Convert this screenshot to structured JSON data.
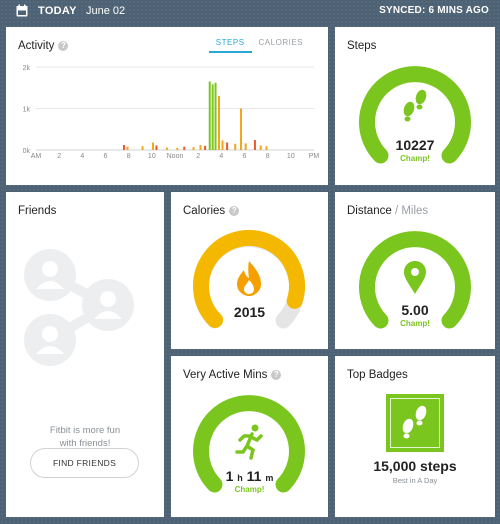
{
  "header": {
    "today_label": "TODAY",
    "date": "June 02",
    "synced": "SYNCED: 6 MINS AGO"
  },
  "activity": {
    "title": "Activity",
    "tabs": [
      {
        "label": "STEPS",
        "active": true
      },
      {
        "label": "CALORIES",
        "active": false
      }
    ]
  },
  "chart_data": {
    "type": "bar",
    "title": "Activity",
    "y_ticks": [
      "0k",
      "1k",
      "2k"
    ],
    "ylim": [
      0,
      2000
    ],
    "x_ticks": [
      "AM",
      "2",
      "4",
      "6",
      "8",
      "10",
      "Noon",
      "2",
      "4",
      "6",
      "8",
      "10",
      "PM"
    ],
    "xlim": [
      0,
      24
    ],
    "grid": true,
    "bars": [
      {
        "x": 7.6,
        "value": 120,
        "color": "#e8582a"
      },
      {
        "x": 7.9,
        "value": 80,
        "color": "#f2a61c"
      },
      {
        "x": 9.2,
        "value": 90,
        "color": "#f2a61c"
      },
      {
        "x": 10.1,
        "value": 180,
        "color": "#f2a61c"
      },
      {
        "x": 10.4,
        "value": 110,
        "color": "#e8582a"
      },
      {
        "x": 11.3,
        "value": 60,
        "color": "#f2a61c"
      },
      {
        "x": 12.2,
        "value": 50,
        "color": "#f2a61c"
      },
      {
        "x": 12.8,
        "value": 80,
        "color": "#e8582a"
      },
      {
        "x": 13.6,
        "value": 70,
        "color": "#f2a61c"
      },
      {
        "x": 14.2,
        "value": 120,
        "color": "#f2a61c"
      },
      {
        "x": 14.6,
        "value": 100,
        "color": "#e8582a"
      },
      {
        "x": 15.0,
        "value": 1650,
        "color": "#7bc61e"
      },
      {
        "x": 15.25,
        "value": 1580,
        "color": "#7bc61e"
      },
      {
        "x": 15.5,
        "value": 1620,
        "color": "#7bc61e"
      },
      {
        "x": 15.8,
        "value": 1300,
        "color": "#f2a61c"
      },
      {
        "x": 16.1,
        "value": 230,
        "color": "#f2a61c"
      },
      {
        "x": 16.5,
        "value": 180,
        "color": "#e8582a"
      },
      {
        "x": 17.2,
        "value": 150,
        "color": "#f2a61c"
      },
      {
        "x": 17.7,
        "value": 1000,
        "color": "#f2a61c"
      },
      {
        "x": 18.1,
        "value": 160,
        "color": "#f2a61c"
      },
      {
        "x": 18.9,
        "value": 240,
        "color": "#e8582a"
      },
      {
        "x": 19.4,
        "value": 110,
        "color": "#f2a61c"
      },
      {
        "x": 19.9,
        "value": 90,
        "color": "#f2a61c"
      }
    ]
  },
  "steps": {
    "title": "Steps",
    "value": "10227",
    "status": "Champ!",
    "icon": "footprints-icon",
    "progress": 1.0,
    "color": "#7bc61e"
  },
  "friends": {
    "title": "Friends",
    "message_line1": "Fitbit is more fun",
    "message_line2": "with friends!",
    "button": "FIND FRIENDS"
  },
  "calories": {
    "title": "Calories",
    "value": "2015",
    "icon": "flame-icon",
    "progress": 0.9,
    "color": "#f5b800"
  },
  "distance": {
    "title": "Distance",
    "unit": " / Miles",
    "value": "5.00",
    "status": "Champ!",
    "icon": "map-pin-icon",
    "progress": 1.0,
    "color": "#7bc61e"
  },
  "active_mins": {
    "title": "Very Active Mins",
    "hours": "1",
    "h_label": "h",
    "minutes": "11",
    "m_label": "m",
    "status": "Champ!",
    "icon": "runner-icon",
    "progress": 1.0,
    "color": "#7bc61e"
  },
  "badges": {
    "title": "Top Badges",
    "value": "15,000 steps",
    "subtitle": "Best in A Day",
    "icon": "footprints-icon"
  }
}
